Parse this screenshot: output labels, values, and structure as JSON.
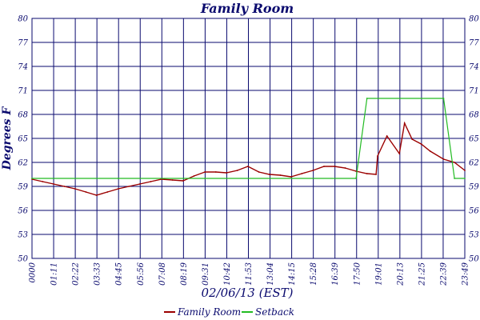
{
  "chart_data": {
    "type": "line",
    "title": "Family Room",
    "xlabel": "02/06/13 (EST)",
    "ylabel": "Degrees F",
    "ylim": [
      50,
      80
    ],
    "yticks": [
      "50",
      "53",
      "56",
      "59",
      "62",
      "65",
      "68",
      "71",
      "74",
      "77",
      "80"
    ],
    "xlim": [
      "00:00",
      "23:49"
    ],
    "xticks": [
      "0000",
      "01:11",
      "02:22",
      "03:33",
      "04:45",
      "05:56",
      "07:08",
      "08:19",
      "09:31",
      "10:42",
      "11:53",
      "13:04",
      "14:15",
      "15:28",
      "16:39",
      "17:50",
      "19:01",
      "20:13",
      "21:25",
      "22:39",
      "23:49"
    ],
    "grid": true,
    "legend_position": "bottom-center",
    "colors": {
      "axis": "#0a0a6e",
      "grid": "#0a0a6e",
      "family_room": "#9b0000",
      "setback": "#22bb22"
    },
    "series": [
      {
        "name": "Family Room",
        "x": [
          "00:00",
          "00:35",
          "01:11",
          "01:47",
          "02:22",
          "02:58",
          "03:33",
          "04:09",
          "04:45",
          "05:20",
          "05:56",
          "06:32",
          "07:08",
          "07:44",
          "08:19",
          "08:55",
          "09:31",
          "10:07",
          "10:42",
          "11:18",
          "11:53",
          "12:29",
          "13:04",
          "13:40",
          "14:15",
          "14:51",
          "15:28",
          "16:04",
          "16:39",
          "17:14",
          "17:50",
          "18:26",
          "18:56",
          "19:01",
          "19:32",
          "20:13",
          "20:30",
          "20:55",
          "21:25",
          "21:55",
          "22:39",
          "23:15",
          "23:49"
        ],
        "values": [
          59.9,
          59.6,
          59.3,
          59.0,
          58.7,
          58.3,
          57.9,
          58.3,
          58.7,
          59.0,
          59.3,
          59.6,
          59.9,
          59.8,
          59.7,
          60.3,
          60.8,
          60.8,
          60.7,
          61.0,
          61.5,
          60.8,
          60.5,
          60.4,
          60.2,
          60.6,
          61.0,
          61.5,
          61.5,
          61.3,
          60.9,
          60.6,
          60.5,
          62.8,
          65.3,
          63.1,
          66.9,
          64.9,
          64.3,
          63.4,
          62.4,
          62.0,
          61.0
        ]
      },
      {
        "name": "Setback",
        "step": true,
        "x": [
          "00:00",
          "04:45",
          "09:31",
          "17:50",
          "18:26",
          "22:39",
          "23:15",
          "23:49"
        ],
        "values": [
          60.0,
          60.0,
          60.0,
          60.0,
          70.0,
          70.0,
          60.0,
          60.0
        ]
      }
    ]
  }
}
